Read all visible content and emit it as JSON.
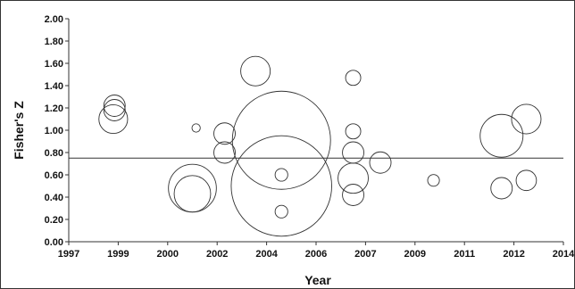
{
  "chart_data": {
    "type": "scatter",
    "subtype": "bubble",
    "xlabel": "Year",
    "ylabel": "Fisher's Z",
    "x_tick_labels": [
      "1997",
      "1999",
      "2000",
      "2002",
      "2004",
      "2006",
      "2007",
      "2009",
      "2011",
      "2012",
      "2014"
    ],
    "y_tick_labels": [
      "0.00",
      "0.20",
      "0.40",
      "0.60",
      "0.80",
      "1.00",
      "1.20",
      "1.40",
      "1.60",
      "1.80",
      "2.00"
    ],
    "ylim": [
      0,
      2
    ],
    "reference_line": {
      "y": 0.75
    },
    "grid": false,
    "legend": "none",
    "line_color": "#333333",
    "points": [
      {
        "x": 1998.85,
        "y": 1.22,
        "size": 1
      },
      {
        "x": 1998.85,
        "y": 1.18,
        "size": 1
      },
      {
        "x": 1998.8,
        "y": 1.1,
        "size": 1.8
      },
      {
        "x": 2001.15,
        "y": 1.02,
        "size": 0.15
      },
      {
        "x": 2001.0,
        "y": 0.48,
        "size": 5
      },
      {
        "x": 2001.0,
        "y": 0.43,
        "size": 2.9
      },
      {
        "x": 2002.3,
        "y": 0.97,
        "size": 1
      },
      {
        "x": 2002.3,
        "y": 0.8,
        "size": 1
      },
      {
        "x": 2003.55,
        "y": 1.53,
        "size": 1.9
      },
      {
        "x": 2004.6,
        "y": 0.91,
        "size": 21
      },
      {
        "x": 2004.6,
        "y": 0.5,
        "size": 22
      },
      {
        "x": 2004.6,
        "y": 0.6,
        "size": 0.35
      },
      {
        "x": 2004.6,
        "y": 0.27,
        "size": 0.35
      },
      {
        "x": 2006.75,
        "y": 1.47,
        "size": 0.5
      },
      {
        "x": 2006.75,
        "y": 0.99,
        "size": 0.5
      },
      {
        "x": 2006.75,
        "y": 0.8,
        "size": 1
      },
      {
        "x": 2006.75,
        "y": 0.57,
        "size": 2
      },
      {
        "x": 2006.75,
        "y": 0.42,
        "size": 1
      },
      {
        "x": 2007.6,
        "y": 0.71,
        "size": 1
      },
      {
        "x": 2009.75,
        "y": 0.55,
        "size": 0.3
      },
      {
        "x": 2011.75,
        "y": 0.95,
        "size": 4
      },
      {
        "x": 2011.75,
        "y": 0.48,
        "size": 1
      },
      {
        "x": 2012.5,
        "y": 1.1,
        "size": 1.9
      },
      {
        "x": 2012.5,
        "y": 0.55,
        "size": 0.9
      }
    ]
  }
}
